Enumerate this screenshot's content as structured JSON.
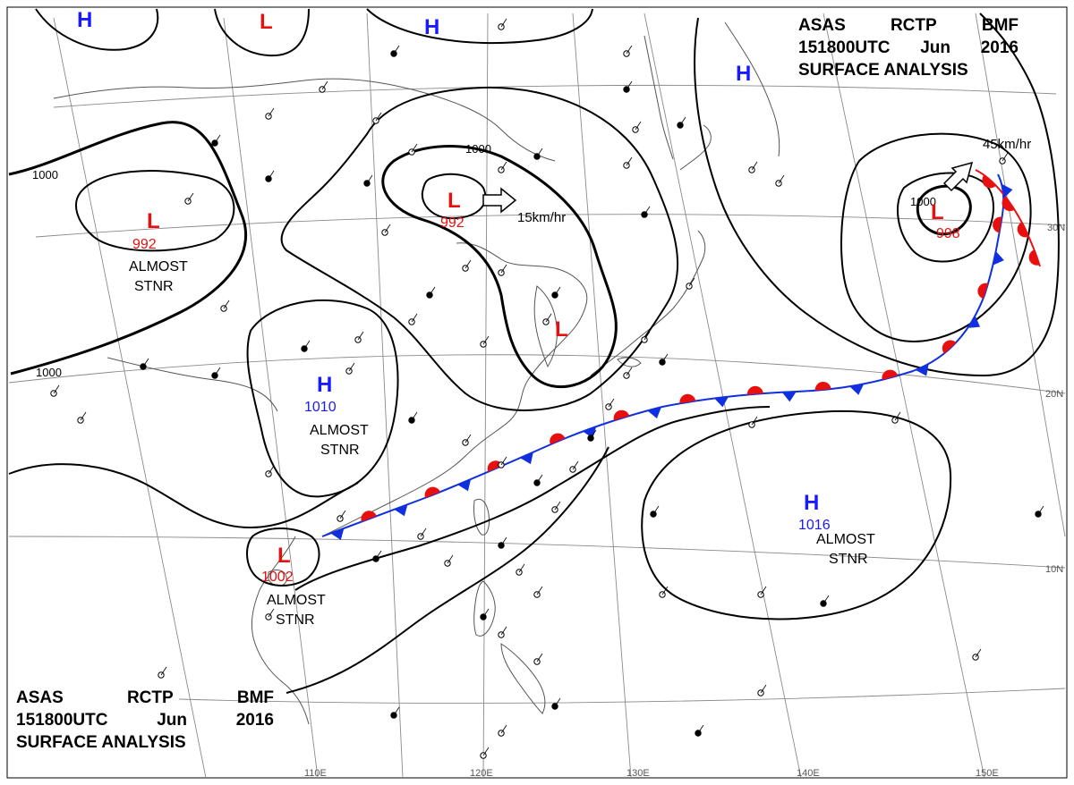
{
  "header": {
    "agency": "ASAS",
    "station": "RCTP",
    "office": "BMF",
    "valid_time": "151800UTC",
    "month": "Jun",
    "year": "2016",
    "product": "SURFACE ANALYSIS"
  },
  "latitude_labels": [
    "30N",
    "20N",
    "10N"
  ],
  "longitude_labels": [
    "110E",
    "120E",
    "130E",
    "140E",
    "150E"
  ],
  "pressure_systems": [
    {
      "type": "H",
      "value": ""
    },
    {
      "type": "L",
      "value": ""
    },
    {
      "type": "H",
      "value": ""
    },
    {
      "type": "H",
      "value": ""
    },
    {
      "type": "L",
      "value": "992"
    },
    {
      "type": "L",
      "value": "992"
    },
    {
      "type": "L",
      "value": "998"
    },
    {
      "type": "L",
      "value": ""
    },
    {
      "type": "H",
      "value": "1010"
    },
    {
      "type": "H",
      "value": "1016"
    },
    {
      "type": "L",
      "value": "1002"
    }
  ],
  "system_remarks": [
    {
      "line1": "ALMOST",
      "line2": "STNR"
    },
    {
      "line1": "ALMOST",
      "line2": "STNR"
    },
    {
      "line1": "ALMOST",
      "line2": "STNR"
    },
    {
      "line1": "ALMOST",
      "line2": "STNR"
    }
  ],
  "motion_labels": [
    "15km/hr",
    "45km/hr"
  ],
  "isobar_labels": [
    "1000",
    "1000",
    "1000",
    "1000"
  ],
  "colors": {
    "high": "#1a1aff",
    "low": "#e8100f",
    "warm_front": "#e8100f",
    "cold_front": "#1030e0",
    "isobar": "#000000",
    "coast": "#555555",
    "grid": "#8a8a8a"
  }
}
